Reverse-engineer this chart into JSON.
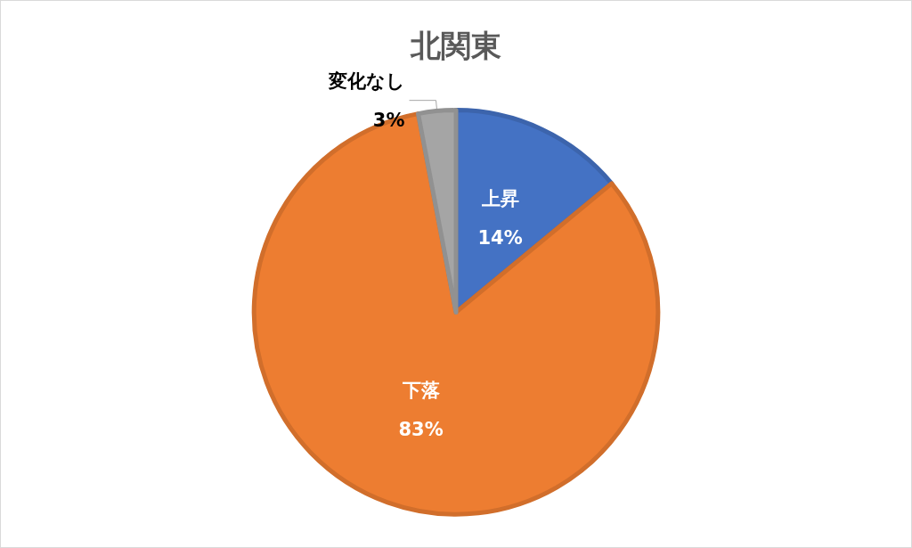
{
  "chart_data": {
    "type": "pie",
    "title": "北関東",
    "categories": [
      "上昇",
      "下落",
      "変化なし"
    ],
    "values": [
      14,
      83,
      3
    ],
    "colors": [
      "#4472c4",
      "#ed7d31",
      "#a5a5a5"
    ],
    "value_labels": [
      "14%",
      "83%",
      "3%"
    ],
    "legend": false
  }
}
